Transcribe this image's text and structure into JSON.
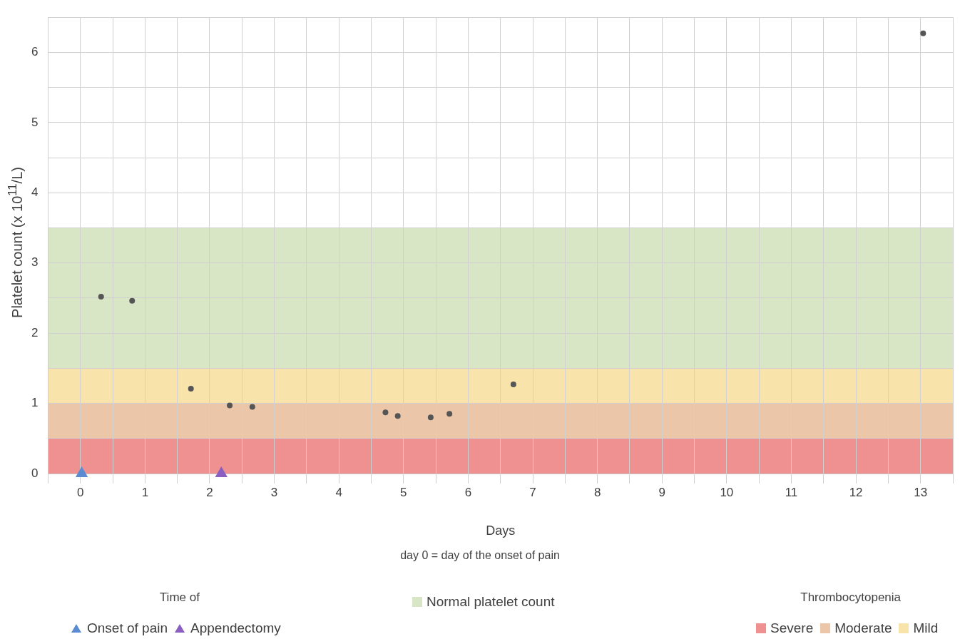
{
  "chart_data": {
    "type": "scatter",
    "xlabel": "Days",
    "ylabel": "Platelet count (x 10$^{11}$/L)",
    "xlim": [
      -0.5,
      13.5
    ],
    "xticks": [
      {
        "value": -0.5,
        "label": null
      },
      0,
      {
        "value": 0.5,
        "label": null
      },
      1,
      {
        "value": 1.5,
        "label": null
      },
      2,
      {
        "value": 2.5,
        "label": null
      },
      3,
      {
        "value": 3.5,
        "label": null
      },
      4,
      {
        "value": 4.5,
        "label": null
      },
      5,
      {
        "value": 5.5,
        "label": null
      },
      6,
      {
        "value": 6.5,
        "label": null
      },
      7,
      {
        "value": 7.5,
        "label": null
      },
      8,
      {
        "value": 8.5,
        "label": null
      },
      9,
      {
        "value": 9.5,
        "label": null
      },
      10,
      {
        "value": 10.5,
        "label": null
      },
      11,
      {
        "value": 11.5,
        "label": null
      },
      12,
      {
        "value": 12.5,
        "label": null
      },
      13,
      {
        "value": 13.5,
        "label": null
      }
    ],
    "ylim": [
      0,
      6.5
    ],
    "yticks": [
      0,
      {
        "value": 0.5,
        "label": null
      },
      1,
      {
        "value": 1.5,
        "label": null
      },
      2,
      {
        "value": 2.5,
        "label": null
      },
      3,
      {
        "value": 3.5,
        "label": null
      },
      4,
      {
        "value": 4.5,
        "label": null
      },
      5,
      {
        "value": 5.5,
        "label": null
      },
      6,
      {
        "value": 6.5,
        "label": null
      }
    ],
    "grid": true,
    "legend": "bottom",
    "series": [
      {
        "color": "#555555",
        "marker": "circle",
        "x": [
          0.32,
          0.8,
          1.71,
          2.31,
          2.66,
          4.72,
          4.91,
          5.42,
          5.71,
          6.7,
          13.04
        ],
        "values": [
          2.52,
          2.46,
          1.21,
          0.97,
          0.95,
          0.87,
          0.82,
          0.8,
          0.85,
          1.27,
          6.27
        ]
      },
      {
        "name": "Onset of pain",
        "color": "#5b8bd0",
        "marker": "triangle",
        "x": [
          0.02
        ],
        "values": [
          0
        ]
      },
      {
        "name": "Appendectomy",
        "color": "#8a5fbf",
        "marker": "triangle",
        "x": [
          2.18
        ],
        "values": [
          0
        ]
      }
    ],
    "bands": [
      {
        "axis": "y",
        "from": 1.5,
        "to": 3.5,
        "label": "Normal platelet count",
        "color": "#d9e6c6"
      },
      {
        "axis": "y",
        "from": 0,
        "to": 0.5,
        "label": "Severe",
        "color": "#f09191"
      },
      {
        "axis": "y",
        "from": 0.5,
        "to": 1,
        "label": "Moderate",
        "color": "#ecc6a8"
      },
      {
        "axis": "y",
        "from": 1,
        "to": 1.5,
        "label": "Mild",
        "color": "#f8e3ab"
      }
    ],
    "annotations": [
      "day 0 = day of the onset of pain",
      "Time of",
      "Thrombocytopenia"
    ]
  }
}
